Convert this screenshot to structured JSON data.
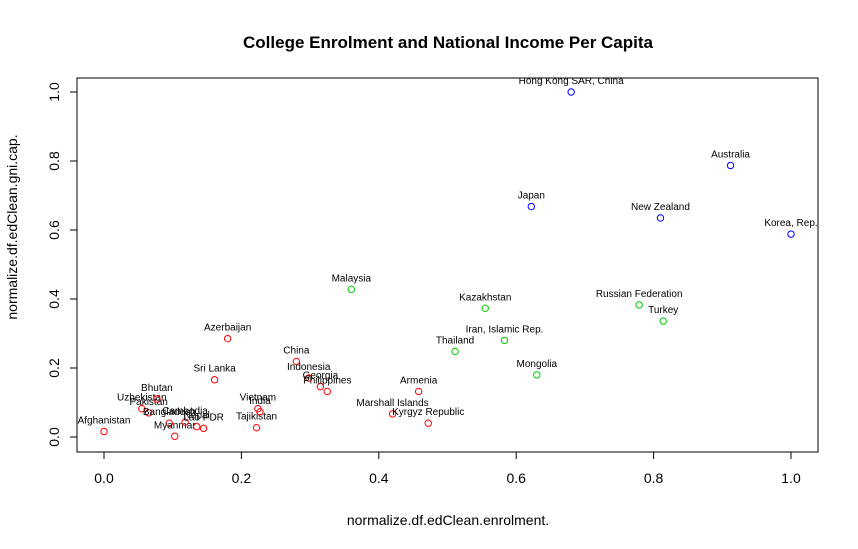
{
  "chart_data": {
    "type": "scatter",
    "title": "College Enrolment and National Income Per Capita",
    "xlabel": "normalize.df.edClean.enrolment.",
    "ylabel": "normalize.df.edClean.gni.cap.",
    "xlim": [
      -0.04,
      1.04
    ],
    "ylim": [
      -0.04,
      1.04
    ],
    "xticks": [
      "0.0",
      "0.2",
      "0.4",
      "0.6",
      "0.8",
      "1.0"
    ],
    "yticks": [
      "0.0",
      "0.2",
      "0.4",
      "0.6",
      "0.8",
      "1.0"
    ],
    "grid": false,
    "colors": {
      "red": "#ff0000",
      "green": "#00cc00",
      "blue": "#0000ff"
    },
    "points": [
      {
        "label": "Afghanistan",
        "x": 0.0,
        "y": 0.016,
        "color": "red"
      },
      {
        "label": "Uzbekistan",
        "x": 0.055,
        "y": 0.082,
        "color": "red"
      },
      {
        "label": "Pakistan",
        "x": 0.065,
        "y": 0.07,
        "color": "red"
      },
      {
        "label": "Bhutan",
        "x": 0.077,
        "y": 0.11,
        "color": "red"
      },
      {
        "label": "Bangladesh",
        "x": 0.095,
        "y": 0.04,
        "color": "red"
      },
      {
        "label": "Myanmar",
        "x": 0.103,
        "y": 0.002,
        "color": "red"
      },
      {
        "label": "Cambodia",
        "x": 0.118,
        "y": 0.043,
        "color": "red"
      },
      {
        "label": "Nepal",
        "x": 0.135,
        "y": 0.03,
        "color": "red"
      },
      {
        "label": "Lao PDR",
        "x": 0.145,
        "y": 0.025,
        "color": "red"
      },
      {
        "label": "Sri Lanka",
        "x": 0.161,
        "y": 0.166,
        "color": "red"
      },
      {
        "label": "Azerbaijan",
        "x": 0.18,
        "y": 0.285,
        "color": "red"
      },
      {
        "label": "Tajikistan",
        "x": 0.222,
        "y": 0.027,
        "color": "red"
      },
      {
        "label": "Vietnam",
        "x": 0.224,
        "y": 0.082,
        "color": "red"
      },
      {
        "label": "India",
        "x": 0.227,
        "y": 0.073,
        "color": "red"
      },
      {
        "label": "China",
        "x": 0.28,
        "y": 0.219,
        "color": "red"
      },
      {
        "label": "Indonesia",
        "x": 0.298,
        "y": 0.171,
        "color": "red"
      },
      {
        "label": "Georgia",
        "x": 0.315,
        "y": 0.146,
        "color": "red"
      },
      {
        "label": "Philippines",
        "x": 0.325,
        "y": 0.132,
        "color": "red"
      },
      {
        "label": "Malaysia",
        "x": 0.36,
        "y": 0.428,
        "color": "green"
      },
      {
        "label": "Marshall Islands",
        "x": 0.42,
        "y": 0.067,
        "color": "red"
      },
      {
        "label": "Armenia",
        "x": 0.458,
        "y": 0.132,
        "color": "red"
      },
      {
        "label": "Kyrgyz Republic",
        "x": 0.472,
        "y": 0.04,
        "color": "red"
      },
      {
        "label": "Thailand",
        "x": 0.511,
        "y": 0.248,
        "color": "green"
      },
      {
        "label": "Kazakhstan",
        "x": 0.555,
        "y": 0.373,
        "color": "green"
      },
      {
        "label": "Iran, Islamic Rep.",
        "x": 0.583,
        "y": 0.28,
        "color": "green"
      },
      {
        "label": "Japan",
        "x": 0.622,
        "y": 0.668,
        "color": "blue"
      },
      {
        "label": "Mongolia",
        "x": 0.63,
        "y": 0.18,
        "color": "green"
      },
      {
        "label": "Hong Kong SAR, China",
        "x": 0.68,
        "y": 1.0,
        "color": "blue"
      },
      {
        "label": "Russian Federation",
        "x": 0.779,
        "y": 0.383,
        "color": "green"
      },
      {
        "label": "New Zealand",
        "x": 0.81,
        "y": 0.635,
        "color": "blue"
      },
      {
        "label": "Turkey",
        "x": 0.814,
        "y": 0.336,
        "color": "green"
      },
      {
        "label": "Australia",
        "x": 0.912,
        "y": 0.787,
        "color": "blue"
      },
      {
        "label": "Korea, Rep.",
        "x": 1.0,
        "y": 0.588,
        "color": "blue"
      }
    ]
  }
}
